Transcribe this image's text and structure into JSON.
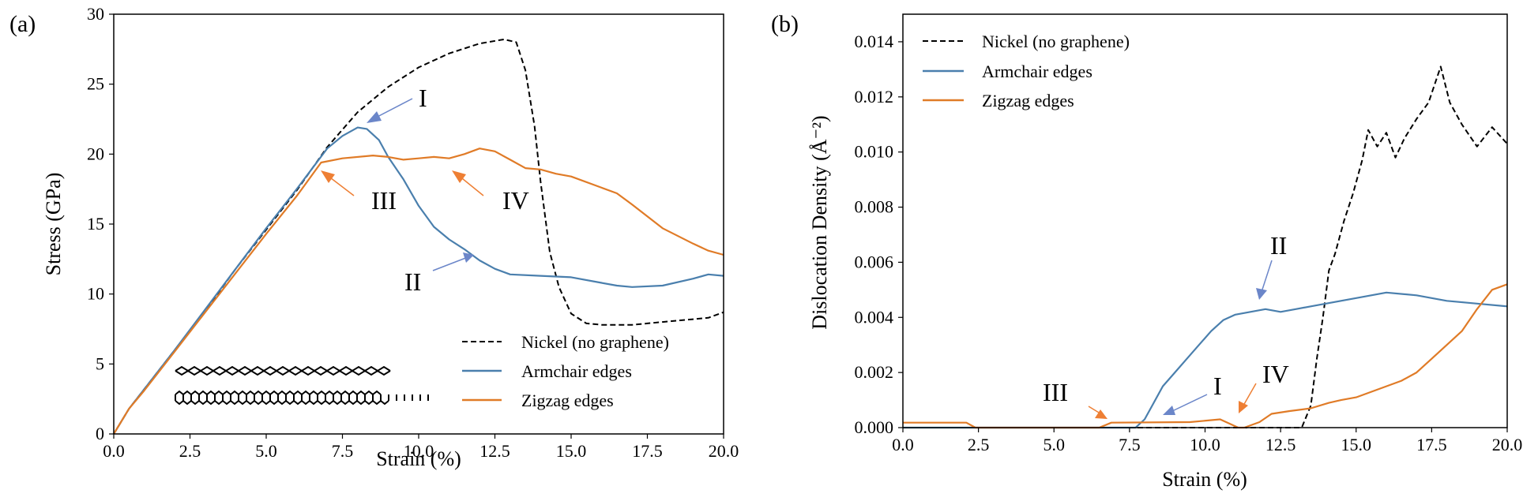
{
  "colors": {
    "nickel": "#000000",
    "armchair": "#4a7fad",
    "zigzag": "#e07b27",
    "arrow_blue": "#6b86c9",
    "arrow_orange": "#ee7f34"
  },
  "chart_data": [
    {
      "type": "line",
      "panel_label": "(a)",
      "xlabel": "Strain (%)",
      "ylabel": "Stress (GPa)",
      "xlim": [
        0,
        20
      ],
      "ylim": [
        0,
        30
      ],
      "xticks": [
        "0.0",
        "2.5",
        "5.0",
        "7.5",
        "10.0",
        "12.5",
        "15.0",
        "17.5",
        "20.0"
      ],
      "yticks": [
        "0",
        "5",
        "10",
        "15",
        "20",
        "25",
        "30"
      ],
      "legend_position": "lower-right",
      "series": [
        {
          "name": "Nickel (no graphene)",
          "style": "dashed",
          "color": "#000000",
          "x": [
            0,
            0.5,
            1,
            2,
            3,
            4,
            5,
            6,
            7,
            8,
            9,
            10,
            11,
            12,
            12.8,
            13.2,
            13.5,
            13.8,
            14,
            14.3,
            14.6,
            15,
            15.5,
            16,
            17,
            18,
            19,
            19.5,
            20
          ],
          "y": [
            0,
            1.8,
            3.2,
            6,
            8.8,
            11.8,
            14.6,
            17.4,
            20.5,
            23,
            24.8,
            26.2,
            27.2,
            27.9,
            28.2,
            28,
            26,
            22,
            18,
            13,
            10.5,
            8.6,
            7.9,
            7.8,
            7.8,
            8,
            8.2,
            8.3,
            8.7
          ]
        },
        {
          "name": "Armchair edges",
          "style": "solid",
          "color": "#4a7fad",
          "x": [
            0,
            0.5,
            1,
            2,
            3,
            4,
            5,
            6,
            7,
            7.5,
            8,
            8.3,
            8.7,
            9,
            9.5,
            10,
            10.5,
            11,
            11.5,
            12,
            12.5,
            13,
            14,
            15,
            16,
            16.5,
            17,
            18,
            19,
            19.5,
            20
          ],
          "y": [
            0,
            1.8,
            3.2,
            6,
            8.9,
            11.8,
            14.7,
            17.5,
            20.4,
            21.3,
            21.9,
            21.8,
            21,
            19.8,
            18.2,
            16.3,
            14.8,
            13.9,
            13.2,
            12.4,
            11.8,
            11.4,
            11.3,
            11.2,
            10.8,
            10.6,
            10.5,
            10.6,
            11.1,
            11.4,
            11.3
          ]
        },
        {
          "name": "Zigzag  edges",
          "style": "solid",
          "color": "#e07b27",
          "x": [
            0,
            0.5,
            1,
            2,
            3,
            4,
            5,
            6,
            6.8,
            7.5,
            8.5,
            9,
            9.5,
            10,
            10.5,
            11,
            11.5,
            12,
            12.5,
            13,
            13.5,
            14,
            14.5,
            15,
            16,
            16.5,
            17,
            18,
            19,
            19.5,
            20
          ],
          "y": [
            0,
            1.8,
            3.1,
            5.9,
            8.7,
            11.5,
            14.3,
            17,
            19.4,
            19.7,
            19.9,
            19.8,
            19.6,
            19.7,
            19.8,
            19.7,
            20,
            20.4,
            20.2,
            19.6,
            19,
            18.9,
            18.6,
            18.4,
            17.6,
            17.2,
            16.4,
            14.7,
            13.6,
            13.1,
            12.8
          ]
        }
      ],
      "annotations": [
        "I",
        "II",
        "III",
        "IV"
      ]
    },
    {
      "type": "line",
      "panel_label": "(b)",
      "xlabel": "Strain (%)",
      "ylabel": "Dislocation Density (Å⁻²)",
      "xlim": [
        0,
        20
      ],
      "ylim": [
        0,
        0.015
      ],
      "xticks": [
        "0.0",
        "2.5",
        "5.0",
        "7.5",
        "10.0",
        "12.5",
        "15.0",
        "17.5",
        "20.0"
      ],
      "yticks": [
        "0.000",
        "0.002",
        "0.004",
        "0.006",
        "0.008",
        "0.010",
        "0.012",
        "0.014"
      ],
      "legend_position": "upper-left",
      "series": [
        {
          "name": "Nickel (no graphene)",
          "style": "dashed",
          "color": "#000000",
          "x": [
            0,
            13.2,
            13.5,
            13.7,
            13.9,
            14.1,
            14.3,
            14.6,
            14.9,
            15.2,
            15.4,
            15.7,
            16,
            16.3,
            16.6,
            17,
            17.4,
            17.8,
            18.1,
            18.5,
            19,
            19.5,
            20
          ],
          "y": [
            0,
            0,
            0.0008,
            0.0025,
            0.004,
            0.0057,
            0.0063,
            0.0075,
            0.0085,
            0.0097,
            0.0108,
            0.0102,
            0.0107,
            0.0098,
            0.0105,
            0.0112,
            0.0118,
            0.0131,
            0.0118,
            0.011,
            0.0102,
            0.0109,
            0.0103
          ]
        },
        {
          "name": "Armchair edges",
          "style": "solid",
          "color": "#4a7fad",
          "x": [
            0,
            7.7,
            8,
            8.3,
            8.6,
            9,
            9.4,
            9.8,
            10.2,
            10.6,
            11,
            11.5,
            12,
            12.5,
            13,
            13.5,
            14,
            15,
            16,
            17,
            18,
            19,
            20
          ],
          "y": [
            0,
            0,
            0.0003,
            0.0009,
            0.0015,
            0.002,
            0.0025,
            0.003,
            0.0035,
            0.0039,
            0.0041,
            0.0042,
            0.0043,
            0.0042,
            0.0043,
            0.0044,
            0.0045,
            0.0047,
            0.0049,
            0.0048,
            0.0046,
            0.0045,
            0.0044
          ]
        },
        {
          "name": "Zigzag edges",
          "style": "solid",
          "color": "#e07b27",
          "x": [
            0,
            2.1,
            2.4,
            6.5,
            6.9,
            9.5,
            10.5,
            10.9,
            11.1,
            11.3,
            11.8,
            12.2,
            12.8,
            13.5,
            14.1,
            14.5,
            15,
            15.5,
            16,
            16.5,
            17,
            17.5,
            18,
            18.5,
            19,
            19.5,
            20
          ],
          "y": [
            0.00018,
            0.00018,
            0,
            0,
            0.00018,
            0.0002,
            0.0003,
            0.0001,
            0,
            0,
            0.0002,
            0.0005,
            0.0006,
            0.0007,
            0.0009,
            0.001,
            0.0011,
            0.0013,
            0.0015,
            0.0017,
            0.002,
            0.0025,
            0.003,
            0.0035,
            0.0043,
            0.005,
            0.0052
          ]
        }
      ],
      "annotations": [
        "II",
        "III",
        "I",
        "IV"
      ]
    }
  ]
}
